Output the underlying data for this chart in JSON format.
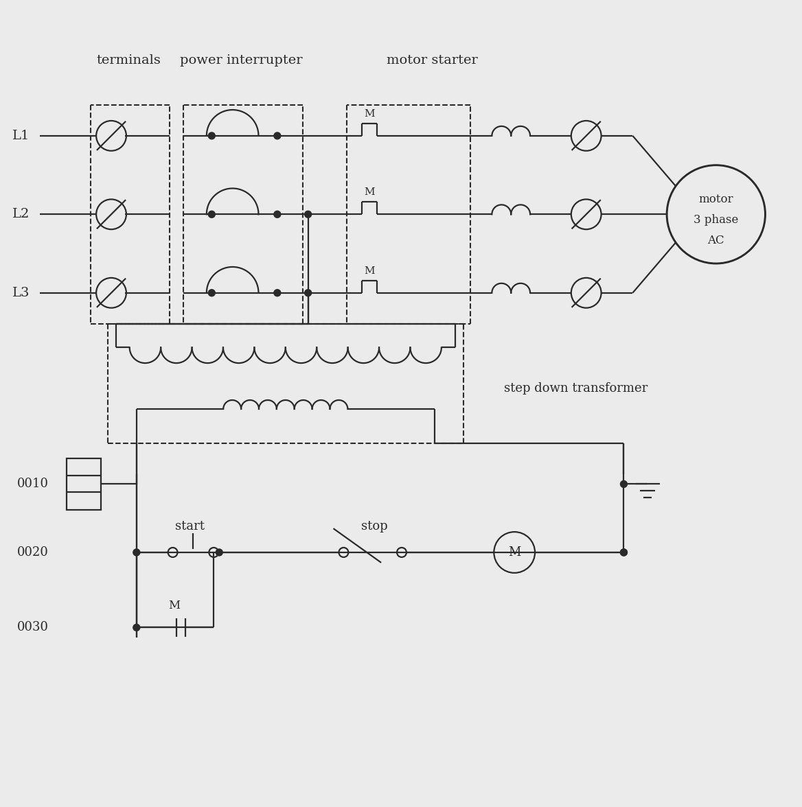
{
  "bg_color": "#ebebeb",
  "line_color": "#2a2a2a",
  "text_color": "#2a2a2a",
  "figsize": [
    11.68,
    11.76
  ],
  "dpi": 100,
  "labels": {
    "terminals": "terminals",
    "power_interrupter": "power interrupter",
    "motor_starter": "motor starter",
    "L1": "L1",
    "L2": "L2",
    "L3": "L3",
    "motor": "motor\n3 phase\nAC",
    "step_down": "step down transformer",
    "start": "start",
    "stop": "stop",
    "M_coil": "M",
    "M_aux": "M",
    "n0010": "0010",
    "n0020": "0020",
    "n0030": "0030"
  }
}
